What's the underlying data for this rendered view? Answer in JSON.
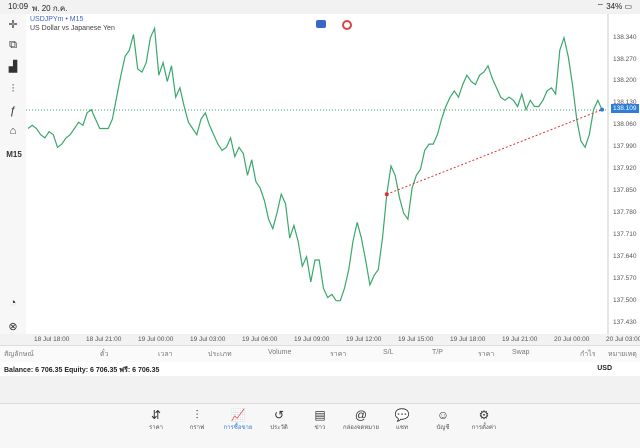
{
  "status": {
    "time": "10:09",
    "date": "พ. 20 ก.ค.",
    "battery": "34%"
  },
  "toolbar": {
    "timeframe": "M15"
  },
  "chart": {
    "symbol": "USDJPYm • M15",
    "description": "US Dollar vs Japanese Yen",
    "current_price": "138.109",
    "price_labels": [
      "138.340",
      "138.270",
      "138.200",
      "138.130",
      "138.060",
      "137.990",
      "137.920",
      "137.850",
      "137.780",
      "137.710",
      "137.640",
      "137.570",
      "137.500",
      "137.430"
    ],
    "time_labels": [
      "18 Jul 18:00",
      "18 Jul 21:00",
      "19 Jul 00:00",
      "19 Jul 03:00",
      "19 Jul 06:00",
      "19 Jul 09:00",
      "19 Jul 12:00",
      "19 Jul 15:00",
      "19 Jul 18:00",
      "19 Jul 21:00",
      "20 Jul 00:00",
      "20 Jul 03:00"
    ],
    "line_color": "#3aa86b",
    "bid_line_color": "#3aa86b",
    "trade_line_color": "#d33",
    "prices": [
      138.05,
      138.06,
      138.05,
      138.03,
      138.02,
      138.04,
      138.03,
      137.99,
      138.0,
      138.02,
      138.03,
      138.05,
      138.07,
      138.06,
      138.1,
      138.11,
      138.08,
      138.05,
      138.05,
      138.05,
      138.08,
      138.15,
      138.22,
      138.28,
      138.3,
      138.35,
      138.24,
      138.23,
      138.26,
      138.34,
      138.37,
      138.22,
      138.26,
      138.2,
      138.25,
      138.15,
      138.18,
      138.12,
      138.07,
      138.05,
      138.03,
      138.08,
      138.1,
      138.06,
      138.03,
      138.0,
      137.98,
      137.99,
      138.02,
      137.96,
      137.99,
      137.97,
      137.9,
      137.95,
      137.88,
      137.86,
      137.82,
      137.76,
      137.73,
      137.78,
      137.84,
      137.81,
      137.7,
      137.74,
      137.69,
      137.61,
      137.64,
      137.56,
      137.63,
      137.63,
      137.54,
      137.51,
      137.52,
      137.5,
      137.5,
      137.54,
      137.6,
      137.69,
      137.75,
      137.7,
      137.63,
      137.55,
      137.58,
      137.6,
      137.7,
      137.84,
      137.93,
      137.9,
      137.83,
      137.78,
      137.76,
      137.86,
      137.9,
      137.92,
      137.98,
      138.0,
      138.0,
      138.03,
      138.08,
      138.12,
      138.15,
      138.17,
      138.15,
      138.19,
      138.22,
      138.2,
      138.19,
      138.22,
      138.23,
      138.25,
      138.21,
      138.18,
      138.15,
      138.14,
      138.15,
      138.14,
      138.12,
      138.16,
      138.11,
      138.14,
      138.12,
      138.12,
      138.14,
      138.17,
      138.18,
      138.16,
      138.3,
      138.34,
      138.28,
      138.19,
      138.08,
      138.01,
      137.99,
      138.03,
      138.11,
      138.14,
      138.11
    ],
    "ylim": [
      137.4,
      138.39
    ]
  },
  "columns": [
    "สัญลักษณ์",
    "ตั๋ว",
    "เวลา",
    "ประเภท",
    "Volume",
    "ราคา",
    "S/L",
    "T/P",
    "ราคา",
    "Swap",
    "กำไร",
    "หมายเหตุ"
  ],
  "balance": {
    "text": "Balance: 6 706.35 Equity: 6 706.35 ฟรี: 6 706.35",
    "currency": "USD"
  },
  "nav": [
    {
      "label": "ราคา",
      "icon": "⇵"
    },
    {
      "label": "กราฟ",
      "icon": "⫶"
    },
    {
      "label": "การซื้อขาย",
      "icon": "📈"
    },
    {
      "label": "ประวัติ",
      "icon": "↺"
    },
    {
      "label": "ข่าว",
      "icon": "▤"
    },
    {
      "label": "กล่องจดหมาย",
      "icon": "@"
    },
    {
      "label": "แชท",
      "icon": "💬"
    },
    {
      "label": "บัญชี",
      "icon": "☺"
    },
    {
      "label": "การตั้งค่า",
      "icon": "⚙"
    }
  ]
}
